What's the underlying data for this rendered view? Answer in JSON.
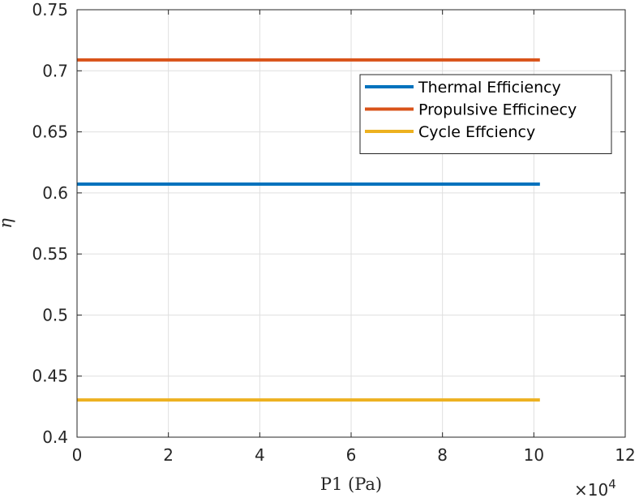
{
  "chart_data": {
    "type": "line",
    "xlabel": "P1 (Pa)",
    "ylabel": "η",
    "x_multiplier": {
      "base": "×10",
      "exponent": "4"
    },
    "xlim": [
      0,
      12
    ],
    "ylim": [
      0.4,
      0.75
    ],
    "xticks": [
      "0",
      "2",
      "4",
      "6",
      "8",
      "10",
      "12"
    ],
    "yticks": [
      "0.4",
      "0.45",
      "0.5",
      "0.55",
      "0.6",
      "0.65",
      "0.7",
      "0.75"
    ],
    "grid": true,
    "legend_position": "top-right",
    "x": [
      0,
      10.1325
    ],
    "series": [
      {
        "name": "Thermal Efficiency",
        "color": "#0072BD",
        "values": [
          0.6072,
          0.6072
        ]
      },
      {
        "name": "Propulsive Efficinecy",
        "color": "#D95319",
        "values": [
          0.7089,
          0.7089
        ]
      },
      {
        "name": "Cycle Effciency",
        "color": "#EDB120",
        "values": [
          0.4305,
          0.4305
        ]
      }
    ]
  }
}
